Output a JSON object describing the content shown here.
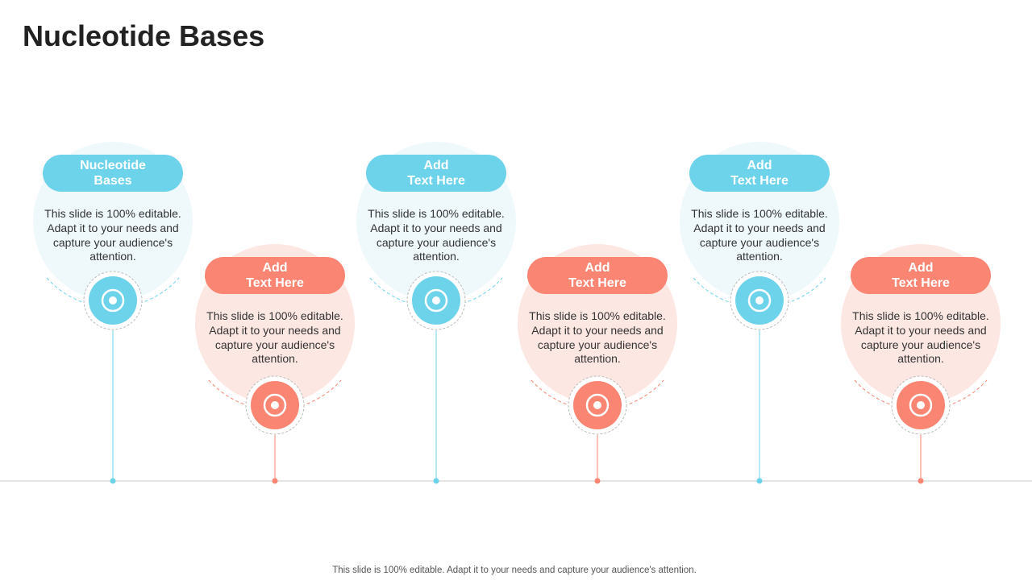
{
  "title": "Nucleotide Bases",
  "items": [
    {
      "heading": [
        "Nucleotide",
        "Bases"
      ],
      "body": "This slide is 100% editable. Adapt it to your needs and capture your audience's attention."
    },
    {
      "heading": [
        "Add",
        "Text Here"
      ],
      "body": "This slide is 100% editable. Adapt it to your needs and capture your audience's attention."
    },
    {
      "heading": [
        "Add",
        "Text Here"
      ],
      "body": "This slide is 100% editable. Adapt it to your needs and capture your audience's attention."
    },
    {
      "heading": [
        "Add",
        "Text Here"
      ],
      "body": "This slide is 100% editable. Adapt it to your needs and capture your audience's attention."
    },
    {
      "heading": [
        "Add",
        "Text Here"
      ],
      "body": "This slide is 100% editable. Adapt it to your needs and capture your audience's attention."
    },
    {
      "heading": [
        "Add",
        "Text Here"
      ],
      "body": "This slide is 100% editable. Adapt it to your needs and capture your audience's attention."
    }
  ],
  "footer": "This slide is 100% editable. Adapt it to your needs and capture your audience's attention."
}
